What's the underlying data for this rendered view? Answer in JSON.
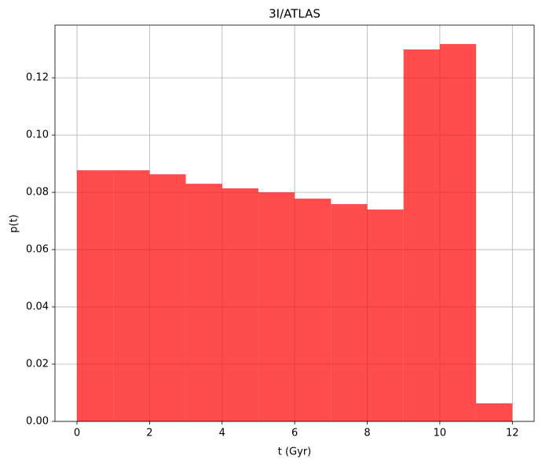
{
  "chart_data": {
    "type": "histogram",
    "title": "3I/ATLAS",
    "xlabel": "t (Gyr)",
    "ylabel": "p(t)",
    "bins": [
      0,
      1,
      2,
      3,
      4,
      5,
      6,
      7,
      8,
      9,
      10,
      11,
      12
    ],
    "values": [
      0.0877,
      0.0877,
      0.0863,
      0.083,
      0.0814,
      0.08,
      0.0778,
      0.0759,
      0.074,
      0.1299,
      0.1318,
      0.0063
    ],
    "color": "#ff0000",
    "alpha": 0.7,
    "xlim": [
      -0.606,
      12.6
    ],
    "xticks": [
      0,
      2,
      4,
      6,
      8,
      10,
      12
    ],
    "ylim": [
      0,
      0.1384
    ],
    "yticks": [
      {
        "value": 0,
        "label": "0.00"
      },
      {
        "value": 0.02,
        "label": "0.02"
      },
      {
        "value": 0.04,
        "label": "0.04"
      },
      {
        "value": 0.06,
        "label": "0.06"
      },
      {
        "value": 0.08,
        "label": "0.08"
      },
      {
        "value": 0.1,
        "label": "0.10"
      },
      {
        "value": 0.12,
        "label": "0.12"
      }
    ],
    "grid": true
  }
}
